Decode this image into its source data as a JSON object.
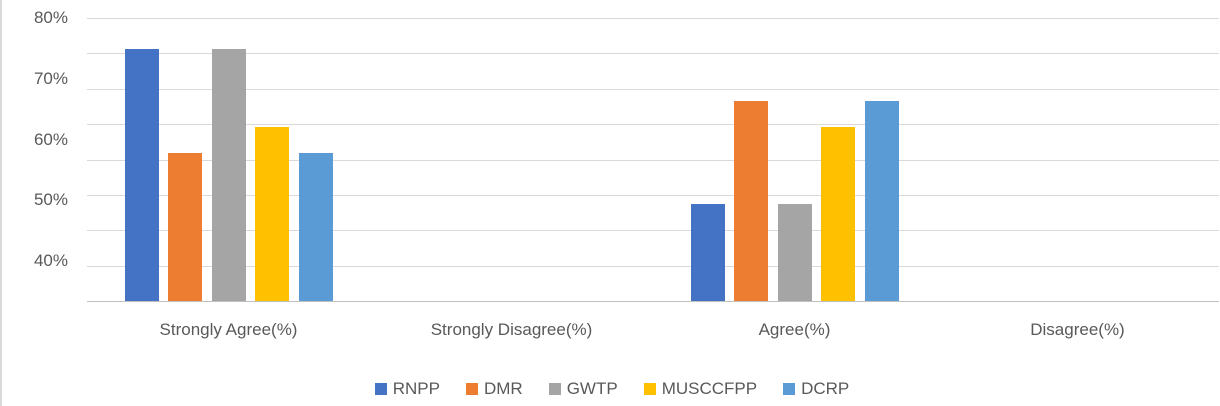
{
  "chart_data": {
    "type": "bar",
    "title": "",
    "categories": [
      "Strongly Agree(%)",
      "Strongly Disagree(%)",
      "Agree(%)",
      "Disagree(%)"
    ],
    "series": [
      {
        "name": "RNPP",
        "color": "#4472C4",
        "values": [
          75,
          0,
          50,
          0
        ]
      },
      {
        "name": "DMR",
        "color": "#ED7D31",
        "values": [
          58.3,
          0,
          66.7,
          0
        ]
      },
      {
        "name": "GWTP",
        "color": "#A5A5A5",
        "values": [
          75,
          0,
          50,
          0
        ]
      },
      {
        "name": "MUSCCFPP",
        "color": "#FFC000",
        "values": [
          62.5,
          0,
          62.5,
          0
        ]
      },
      {
        "name": "DCRP",
        "color": "#5B9BD5",
        "values": [
          58.3,
          0,
          66.7,
          0
        ]
      }
    ],
    "y_axis": {
      "tick_labels": [
        "80%",
        "70%",
        "60%",
        "50%",
        "40%"
      ],
      "tick_values": [
        80,
        70,
        60,
        50,
        40
      ],
      "ylim": [
        34.4,
        80
      ],
      "gridline_count": 9
    },
    "xlabel": "",
    "ylabel": "",
    "grid": true,
    "legend": {
      "position": "bottom",
      "entries": [
        "RNPP",
        "DMR",
        "GWTP",
        "MUSCCFPP",
        "DCRP"
      ]
    }
  },
  "colors": {
    "gridline": "#d9d9d9",
    "axis_line": "#bfbfbf",
    "text": "#595959",
    "chart_border": "#d9d9d9",
    "background": "#ffffff"
  }
}
